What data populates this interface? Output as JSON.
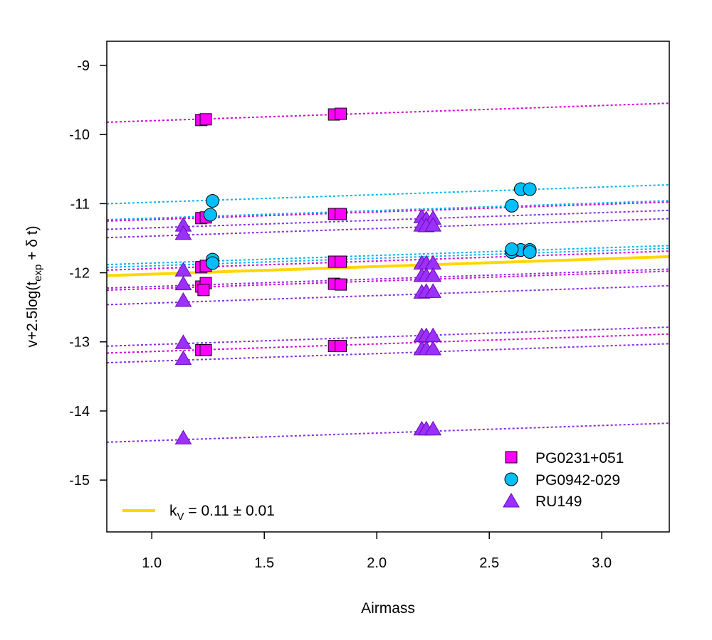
{
  "chart_data": {
    "type": "scatter",
    "xlabel": "Airmass",
    "ylabel": "v+2.5log(t_exp + δ t)",
    "ylabel_parts": {
      "main": "v+2.5log(t",
      "sub": "exp",
      "tail": " + δ t)"
    },
    "xlim": [
      0.8,
      3.3
    ],
    "ylim": [
      -15.75,
      -8.65
    ],
    "x_ticks": [
      1.0,
      1.5,
      2.0,
      2.5,
      3.0
    ],
    "x_tick_labels": [
      "1.0",
      "1.5",
      "2.0",
      "2.5",
      "3.0"
    ],
    "y_ticks": [
      -9,
      -10,
      -11,
      -12,
      -13,
      -14,
      -15
    ],
    "y_tick_labels": [
      "-9",
      "-10",
      "-11",
      "-12",
      "-13",
      "-14",
      "-15"
    ],
    "colors": {
      "PG0231+051": "#ff00ff",
      "PG0942-029": "#00bfff",
      "RU149": "#9b30ff",
      "fit": "#ffd700"
    },
    "legend": {
      "position": "bottom-right",
      "entries": [
        {
          "label": "PG0231+051",
          "marker": "square"
        },
        {
          "label": "PG0942-029",
          "marker": "circle"
        },
        {
          "label": "RU149",
          "marker": "triangle"
        }
      ]
    },
    "fit_line": {
      "slope": 0.11,
      "intercept": -12.13,
      "legend": {
        "main": "k",
        "sub": "V",
        "tail": " = 0.11 ± 0.01",
        "position": "bottom-left"
      }
    },
    "fit_lines": [
      {
        "series": "PG0231+051",
        "intercept": -9.91,
        "slope": 0.11
      },
      {
        "series": "PG0231+051",
        "intercept": -11.34,
        "slope": 0.11
      },
      {
        "series": "PG0231+051",
        "intercept": -12.05,
        "slope": 0.11
      },
      {
        "series": "PG0231+051",
        "intercept": -12.34,
        "slope": 0.11
      },
      {
        "series": "PG0231+051",
        "intercept": -13.25,
        "slope": 0.11
      },
      {
        "series": "PG0942-029",
        "intercept": -11.09,
        "slope": 0.11
      },
      {
        "series": "PG0942-029",
        "intercept": -11.32,
        "slope": 0.11
      },
      {
        "series": "PG0942-029",
        "intercept": -11.97,
        "slope": 0.11
      },
      {
        "series": "PG0942-029",
        "intercept": -12.01,
        "slope": 0.11
      },
      {
        "series": "RU149",
        "intercept": -11.46,
        "slope": 0.11
      },
      {
        "series": "RU149",
        "intercept": -11.58,
        "slope": 0.11
      },
      {
        "series": "RU149",
        "intercept": -12.31,
        "slope": 0.11
      },
      {
        "series": "RU149",
        "intercept": -12.55,
        "slope": 0.11
      },
      {
        "series": "RU149",
        "intercept": -13.15,
        "slope": 0.11
      },
      {
        "series": "RU149",
        "intercept": -13.39,
        "slope": 0.11
      },
      {
        "series": "RU149",
        "intercept": -14.54,
        "slope": 0.11
      }
    ],
    "series": [
      {
        "name": "PG0231+051",
        "marker": "square",
        "points": [
          [
            1.22,
            -9.79
          ],
          [
            1.24,
            -9.78
          ],
          [
            1.81,
            -9.71
          ],
          [
            1.84,
            -9.7
          ],
          [
            1.22,
            -11.21
          ],
          [
            1.24,
            -11.2
          ],
          [
            1.81,
            -11.15
          ],
          [
            1.84,
            -11.15
          ],
          [
            1.22,
            -11.92
          ],
          [
            1.24,
            -11.9
          ],
          [
            1.81,
            -11.84
          ],
          [
            1.84,
            -11.84
          ],
          [
            1.22,
            -12.2
          ],
          [
            1.24,
            -12.15
          ],
          [
            1.23,
            -12.25
          ],
          [
            1.81,
            -12.16
          ],
          [
            1.84,
            -12.17
          ],
          [
            1.22,
            -13.12
          ],
          [
            1.24,
            -13.12
          ],
          [
            1.81,
            -13.06
          ],
          [
            1.84,
            -13.06
          ]
        ]
      },
      {
        "name": "PG0942-029",
        "marker": "circle",
        "points": [
          [
            1.27,
            -10.96
          ],
          [
            1.26,
            -11.16
          ],
          [
            1.27,
            -11.81
          ],
          [
            1.27,
            -11.86
          ],
          [
            2.6,
            -11.03
          ],
          [
            2.64,
            -10.79
          ],
          [
            2.68,
            -10.79
          ],
          [
            2.6,
            -11.7
          ],
          [
            2.64,
            -11.67
          ],
          [
            2.68,
            -11.67
          ],
          [
            2.6,
            -11.66
          ],
          [
            2.68,
            -11.7
          ]
        ]
      },
      {
        "name": "RU149",
        "marker": "triangle",
        "points": [
          [
            1.14,
            -11.32
          ],
          [
            1.14,
            -11.44
          ],
          [
            1.14,
            -11.97
          ],
          [
            1.14,
            -12.17
          ],
          [
            1.14,
            -12.41
          ],
          [
            1.14,
            -13.02
          ],
          [
            1.14,
            -13.25
          ],
          [
            1.14,
            -14.4
          ],
          [
            2.2,
            -11.2
          ],
          [
            2.22,
            -11.23
          ],
          [
            2.25,
            -11.22
          ],
          [
            2.2,
            -11.32
          ],
          [
            2.22,
            -11.33
          ],
          [
            2.25,
            -11.32
          ],
          [
            2.2,
            -11.87
          ],
          [
            2.22,
            -11.87
          ],
          [
            2.25,
            -11.87
          ],
          [
            2.2,
            -12.05
          ],
          [
            2.22,
            -12.05
          ],
          [
            2.25,
            -12.05
          ],
          [
            2.2,
            -12.29
          ],
          [
            2.22,
            -12.28
          ],
          [
            2.25,
            -12.28
          ],
          [
            2.2,
            -12.92
          ],
          [
            2.22,
            -12.92
          ],
          [
            2.25,
            -12.92
          ],
          [
            2.2,
            -13.11
          ],
          [
            2.22,
            -13.11
          ],
          [
            2.25,
            -13.11
          ],
          [
            2.2,
            -14.27
          ],
          [
            2.22,
            -14.27
          ],
          [
            2.25,
            -14.27
          ]
        ]
      }
    ]
  }
}
